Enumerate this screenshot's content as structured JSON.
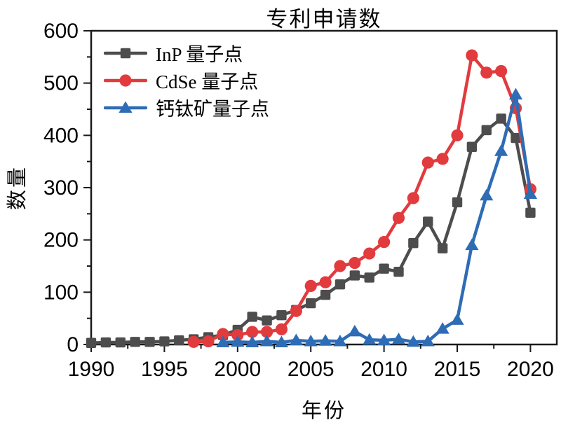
{
  "title": "专利申请数",
  "axes": {
    "x_label": "年份",
    "y_label": "数量",
    "x_ticks": [
      1990,
      1995,
      2000,
      2005,
      2010,
      2015,
      2020
    ],
    "y_ticks": [
      0,
      100,
      200,
      300,
      400,
      500,
      600
    ],
    "x_minor_step": 2.5,
    "y_minor_step": 50
  },
  "chart_data": {
    "type": "line",
    "title": "专利申请数",
    "xlabel": "年份",
    "ylabel": "数量",
    "xlim": [
      1990,
      2021.8
    ],
    "ylim": [
      0,
      600
    ],
    "grid": false,
    "legend_position": "upper-left",
    "series": [
      {
        "name": "InP 量子点",
        "color": "#4d4d4d",
        "marker": "square",
        "x": [
          1990,
          1991,
          1992,
          1993,
          1994,
          1995,
          1996,
          1997,
          1998,
          1999,
          2000,
          2001,
          2002,
          2003,
          2004,
          2005,
          2006,
          2007,
          2008,
          2009,
          2010,
          2011,
          2012,
          2013,
          2014,
          2015,
          2016,
          2017,
          2018,
          2019,
          2020
        ],
        "y": [
          3,
          4,
          4,
          5,
          5,
          6,
          8,
          10,
          14,
          18,
          28,
          53,
          46,
          56,
          66,
          79,
          95,
          115,
          132,
          128,
          145,
          139,
          194,
          235,
          184,
          272,
          378,
          410,
          432,
          395,
          252
        ]
      },
      {
        "name": "CdSe 量子点",
        "color": "#e13b3e",
        "marker": "circle",
        "x": [
          1997,
          1998,
          1999,
          2000,
          2001,
          2002,
          2003,
          2004,
          2005,
          2006,
          2007,
          2008,
          2009,
          2010,
          2011,
          2012,
          2013,
          2014,
          2015,
          2016,
          2017,
          2018,
          2019,
          2020
        ],
        "y": [
          5,
          6,
          20,
          18,
          24,
          24,
          29,
          64,
          112,
          119,
          150,
          156,
          174,
          196,
          242,
          280,
          348,
          355,
          400,
          553,
          520,
          523,
          452,
          297
        ]
      },
      {
        "name": "钙钛矿量子点",
        "color": "#2e6cb5",
        "marker": "triangle",
        "x": [
          1999,
          2000,
          2001,
          2002,
          2003,
          2004,
          2005,
          2006,
          2007,
          2008,
          2009,
          2010,
          2011,
          2012,
          2013,
          2014,
          2015,
          2016,
          2017,
          2018,
          2019,
          2020
        ],
        "y": [
          4,
          5,
          4,
          6,
          4,
          8,
          6,
          7,
          6,
          25,
          9,
          8,
          10,
          5,
          6,
          30,
          47,
          190,
          285,
          370,
          478,
          288
        ]
      }
    ]
  }
}
